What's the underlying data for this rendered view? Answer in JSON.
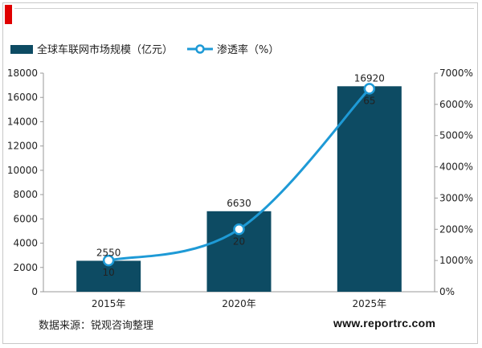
{
  "chart_data": {
    "type": "bar",
    "categories": [
      "2015年",
      "2020年",
      "2025年"
    ],
    "series": [
      {
        "name": "全球车联网市场规模（亿元）",
        "type": "bar",
        "axis": "left",
        "values": [
          2550,
          6630,
          16920
        ],
        "color": "#0d4b63"
      },
      {
        "name": "渗透率（%）",
        "type": "line",
        "axis": "right",
        "values": [
          10,
          20,
          65
        ],
        "color": "#1e9ad6"
      }
    ],
    "bar_labels": [
      "2550",
      "6630",
      "16920"
    ],
    "line_labels": [
      "10",
      "20",
      "65"
    ],
    "ylim": [
      0,
      18000
    ],
    "y2lim": [
      0,
      7000
    ],
    "yticks": [
      "0",
      "2000",
      "4000",
      "6000",
      "8000",
      "10000",
      "12000",
      "14000",
      "16000",
      "18000"
    ],
    "y2ticks": [
      "0%",
      "1000%",
      "2000%",
      "3000%",
      "4000%",
      "5000%",
      "6000%",
      "7000%"
    ],
    "legend_position": "top-left",
    "grid": false
  },
  "footer": {
    "source": "数据来源：锐观咨询整理",
    "website": "www.reportrc.com"
  }
}
